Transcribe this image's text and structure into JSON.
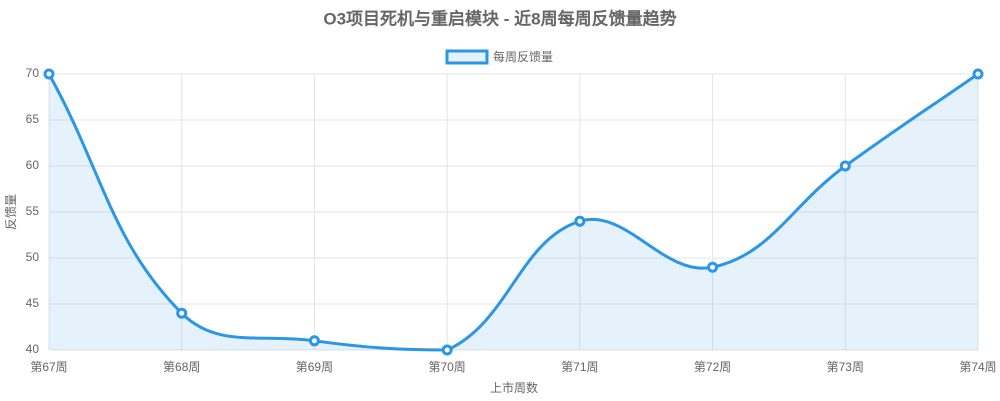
{
  "chart_data": {
    "type": "line",
    "title": "O3项目死机与重启模块 - 近8周每周反馈量趋势",
    "x_label": "上市周数",
    "y_label": "反馈量",
    "categories": [
      "第67周",
      "第68周",
      "第69周",
      "第70周",
      "第71周",
      "第72周",
      "第73周",
      "第74周"
    ],
    "series": [
      {
        "name": "每周反馈量",
        "color": "#2b95e6",
        "values": [
          70,
          44,
          41,
          40,
          54,
          49,
          60,
          70
        ]
      }
    ],
    "ylim": [
      40,
      70
    ],
    "yticks": [
      40,
      45,
      50,
      55,
      60,
      65,
      70
    ],
    "grid": true,
    "legend": "top",
    "fill": true
  }
}
